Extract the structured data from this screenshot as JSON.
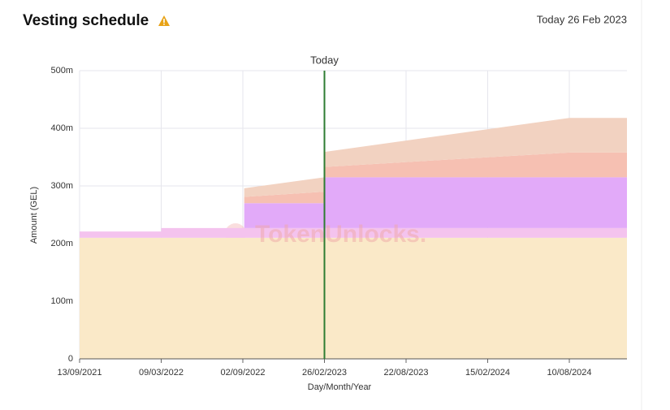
{
  "chart_data": {
    "type": "stacked-area",
    "title": "Vesting schedule",
    "header_date": "Today 26 Feb 2023",
    "watermark": "TokenUnlocks.",
    "x_label": "Day/Month/Year",
    "y_label": "Amount (GEL)",
    "x": [
      "13/09/2021",
      "09/03/2022",
      "09/03/2022",
      "05/09/2022",
      "05/09/2022",
      "26/02/2023",
      "26/02/2023",
      "10/08/2024",
      "13/12/2024"
    ],
    "series": [
      {
        "color": "#fae9c8",
        "values": [
          210,
          210,
          210,
          210,
          210,
          210,
          210,
          210,
          210
        ]
      },
      {
        "color": "#f4c3ee",
        "values": [
          11,
          11,
          17,
          17,
          17,
          17,
          17,
          17,
          17
        ]
      },
      {
        "color": "#e2aaf9",
        "values": [
          0,
          0,
          0,
          0,
          43,
          43,
          88,
          88,
          88
        ]
      },
      {
        "color": "#f6c0b2",
        "values": [
          0,
          0,
          0,
          0,
          11,
          20,
          18,
          43,
          43
        ]
      },
      {
        "color": "#f2d2c1",
        "values": [
          0,
          0,
          0,
          0,
          15,
          25,
          26,
          60,
          60
        ]
      }
    ],
    "today": {
      "x": "26/02/2023",
      "label": "Today",
      "color": "#2e7d32"
    },
    "xlim": [
      "13/09/2021",
      "13/12/2024"
    ],
    "xticks": [
      "13/09/2021",
      "09/03/2022",
      "02/09/2022",
      "26/02/2023",
      "22/08/2023",
      "15/02/2024",
      "10/08/2024"
    ],
    "ylim": [
      0,
      500
    ],
    "yticks": [
      0,
      {
        "value": 100,
        "label": "100m"
      },
      {
        "value": 200,
        "label": "200m"
      },
      {
        "value": 300,
        "label": "300m"
      },
      {
        "value": 400,
        "label": "400m"
      },
      {
        "value": 500,
        "label": "500m"
      }
    ],
    "grid": true
  }
}
